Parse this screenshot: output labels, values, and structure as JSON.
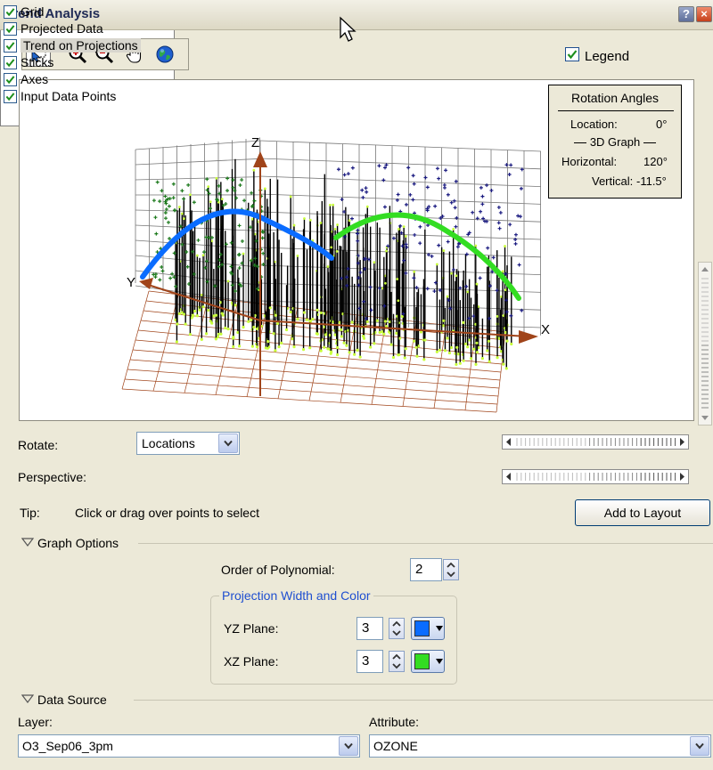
{
  "window": {
    "title": "Trend Analysis",
    "help_label": "?",
    "close_label": "×"
  },
  "toolbar": {
    "tools": [
      "select-icon",
      "zoom-in-icon",
      "zoom-out-icon",
      "pan-hand-icon",
      "globe-icon"
    ],
    "legend_label": "Legend",
    "legend_checked": true
  },
  "graph": {
    "axis_labels": {
      "x": "X",
      "y": "Y",
      "z": "Z"
    },
    "trend_colors": {
      "yz": "#0a6cff",
      "xz": "#33dd22"
    },
    "rotation": {
      "title": "Rotation Angles",
      "location_label": "Location:",
      "location_value": "0°",
      "section_label": "3D Graph",
      "horizontal_label": "Horizontal:",
      "horizontal_value": "120°",
      "vertical_label": "Vertical:",
      "vertical_value": "-11.5°"
    }
  },
  "rotate": {
    "label": "Rotate:",
    "value": "Locations"
  },
  "perspective": {
    "label": "Perspective:"
  },
  "tip": {
    "label": "Tip:",
    "text": "Click or drag over points to select"
  },
  "add_to_layout": "Add to Layout",
  "graph_options": {
    "header": "Graph Options",
    "items": [
      {
        "label": "Grid",
        "checked": true
      },
      {
        "label": "Projected Data",
        "checked": true
      },
      {
        "label": "Trend on Projections",
        "checked": true,
        "selected": true
      },
      {
        "label": "Sticks",
        "checked": true
      },
      {
        "label": "Axes",
        "checked": true
      },
      {
        "label": "Input Data Points",
        "checked": true
      }
    ],
    "order_label": "Order of Polynomial:",
    "order_value": "2",
    "projection_group": "Projection Width and Color",
    "yz_label": "YZ Plane:",
    "yz_value": "3",
    "yz_color": "#0a6cff",
    "xz_label": "XZ Plane:",
    "xz_value": "3",
    "xz_color": "#33dd22"
  },
  "data_source": {
    "header": "Data Source",
    "layer_label": "Layer:",
    "layer_value": "O3_Sep06_3pm",
    "attribute_label": "Attribute:",
    "attribute_value": "OZONE"
  }
}
